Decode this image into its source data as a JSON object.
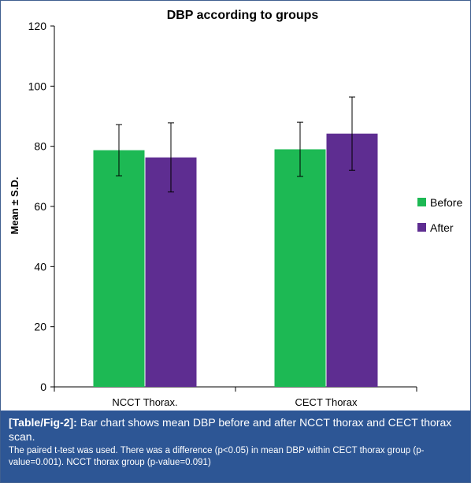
{
  "chart_data": {
    "type": "bar",
    "title": "DBP according to groups",
    "xlabel": "",
    "ylabel": "Mean ± S.D.",
    "ylim": [
      0,
      120
    ],
    "yticks": [
      0,
      20,
      40,
      60,
      80,
      100,
      120
    ],
    "categories": [
      "NCCT Thorax.",
      "CECT Thorax"
    ],
    "series": [
      {
        "name": "Before",
        "color": "#1db954",
        "values": [
          78.7,
          79.0
        ],
        "sd": [
          8.5,
          9.0
        ]
      },
      {
        "name": "After",
        "color": "#5e2d91",
        "values": [
          76.3,
          84.2
        ],
        "sd": [
          11.5,
          12.2
        ]
      }
    ],
    "grid": false,
    "legend_position": "right"
  },
  "caption": {
    "fig_ref": "[Table/Fig-2]:",
    "main": "Bar chart shows mean DBP before and after NCCT thorax and CECT thorax scan.",
    "note": "The paired t-test was used. There was a difference (p<0.05) in mean DBP within CECT thorax group (p-value=0.001). NCCT thorax group (p-value=0.091)"
  }
}
